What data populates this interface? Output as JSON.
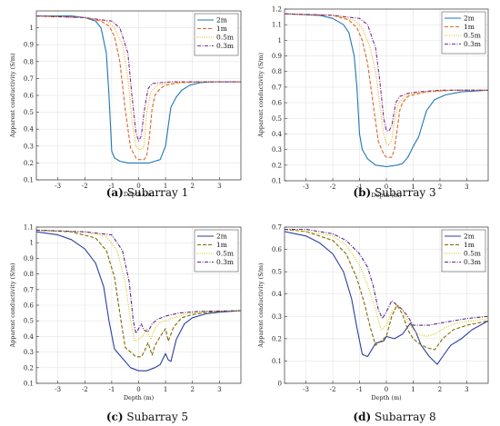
{
  "figure": {
    "colors": {
      "2m": "#1f77b4",
      "1m": "#e0642a",
      "0.5m": "#e7b10a",
      "0.3m": "#7e2f8e"
    }
  },
  "chart_data": [
    {
      "type": "line",
      "id": "a",
      "caption_label": "(a)",
      "caption_text": "Subarray 1",
      "xlabel": "Depth (m)",
      "ylabel": "Apparent conductivity (S/m)",
      "xlim": [
        -3.8,
        3.8
      ],
      "ylim": [
        0.1,
        1.1
      ],
      "xticks": [
        "-3",
        "-2",
        "-1",
        "0",
        "1",
        "2",
        "3"
      ],
      "yticks": [
        "0.1",
        "0.2",
        "0.3",
        "0.4",
        "0.5",
        "0.6",
        "0.7",
        "0.8",
        "0.9",
        "1"
      ],
      "ytick_values": [
        0.1,
        0.2,
        0.3,
        0.4,
        0.5,
        0.6,
        0.7,
        0.8,
        0.9,
        1.0
      ],
      "legend": "top-right",
      "series": [
        {
          "name": "2m",
          "color": "#1f77b4",
          "dash": "solid",
          "x": [
            -3.8,
            -2.5,
            -2.0,
            -1.6,
            -1.4,
            -1.2,
            -1.1,
            -1.0,
            -0.9,
            -0.7,
            -0.4,
            0.0,
            0.4,
            0.6,
            0.8,
            1.0,
            1.1,
            1.2,
            1.4,
            1.6,
            1.9,
            2.3,
            2.8,
            3.8
          ],
          "y": [
            1.07,
            1.07,
            1.06,
            1.04,
            1.0,
            0.85,
            0.6,
            0.27,
            0.23,
            0.21,
            0.2,
            0.2,
            0.2,
            0.21,
            0.22,
            0.3,
            0.42,
            0.53,
            0.59,
            0.63,
            0.66,
            0.675,
            0.68,
            0.68
          ]
        },
        {
          "name": "1m",
          "color": "#e0642a",
          "dash": "dashed",
          "x": [
            -3.8,
            -2.0,
            -1.4,
            -1.1,
            -0.9,
            -0.7,
            -0.5,
            -0.3,
            -0.1,
            0.0,
            0.2,
            0.3,
            0.4,
            0.5,
            0.6,
            0.8,
            1.0,
            1.5,
            2.5,
            3.8
          ],
          "y": [
            1.07,
            1.06,
            1.04,
            1.01,
            0.95,
            0.8,
            0.52,
            0.29,
            0.23,
            0.22,
            0.22,
            0.24,
            0.35,
            0.52,
            0.6,
            0.64,
            0.66,
            0.675,
            0.68,
            0.68
          ]
        },
        {
          "name": "0.5m",
          "color": "#e7b10a",
          "dash": "dotted",
          "x": [
            -3.8,
            -2.0,
            -1.2,
            -0.9,
            -0.6,
            -0.4,
            -0.25,
            -0.1,
            0.0,
            0.1,
            0.2,
            0.3,
            0.45,
            0.7,
            1.0,
            1.5,
            2.5,
            3.8
          ],
          "y": [
            1.07,
            1.06,
            1.04,
            1.0,
            0.9,
            0.7,
            0.45,
            0.3,
            0.28,
            0.28,
            0.3,
            0.5,
            0.62,
            0.66,
            0.67,
            0.675,
            0.68,
            0.68
          ]
        },
        {
          "name": "0.3m",
          "color": "#7e2f8e",
          "dash": "dashdot",
          "x": [
            -3.8,
            -2.0,
            -1.0,
            -0.7,
            -0.4,
            -0.25,
            -0.1,
            0.0,
            0.1,
            0.2,
            0.35,
            0.5,
            0.8,
            1.2,
            2.0,
            3.8
          ],
          "y": [
            1.07,
            1.06,
            1.04,
            1.0,
            0.85,
            0.6,
            0.38,
            0.33,
            0.36,
            0.5,
            0.64,
            0.67,
            0.675,
            0.68,
            0.68,
            0.68
          ]
        }
      ]
    },
    {
      "type": "line",
      "id": "b",
      "caption_label": "(b)",
      "caption_text": "Subarray 3",
      "xlabel": "Depth (m)",
      "ylabel": "Apparent conductivity (S/m)",
      "xlim": [
        -3.8,
        3.8
      ],
      "ylim": [
        0.1,
        1.2
      ],
      "xticks": [
        "-3",
        "-2",
        "-1",
        "0",
        "1",
        "2",
        "3"
      ],
      "yticks": [
        "0.1",
        "0.2",
        "0.3",
        "0.4",
        "0.5",
        "0.6",
        "0.7",
        "0.8",
        "0.9",
        "1",
        "1.1",
        "1.2"
      ],
      "ytick_values": [
        0.1,
        0.2,
        0.3,
        0.4,
        0.5,
        0.6,
        0.7,
        0.8,
        0.9,
        1.0,
        1.1,
        1.2
      ],
      "legend": "top-right",
      "series": [
        {
          "name": "2m",
          "color": "#1f77b4",
          "dash": "solid",
          "x": [
            -3.8,
            -2.5,
            -2.0,
            -1.6,
            -1.4,
            -1.2,
            -1.1,
            -1.0,
            -0.9,
            -0.7,
            -0.4,
            0.0,
            0.4,
            0.6,
            0.8,
            1.0,
            1.2,
            1.5,
            1.8,
            2.2,
            2.8,
            3.8
          ],
          "y": [
            1.17,
            1.16,
            1.14,
            1.1,
            1.05,
            0.9,
            0.7,
            0.4,
            0.3,
            0.24,
            0.2,
            0.19,
            0.2,
            0.21,
            0.25,
            0.32,
            0.38,
            0.55,
            0.62,
            0.65,
            0.67,
            0.68
          ]
        },
        {
          "name": "1m",
          "color": "#e0642a",
          "dash": "dashed",
          "x": [
            -3.8,
            -2.0,
            -1.4,
            -1.1,
            -0.9,
            -0.7,
            -0.5,
            -0.3,
            -0.1,
            0.0,
            0.2,
            0.3,
            0.4,
            0.5,
            0.6,
            0.8,
            1.0,
            1.5,
            2.5,
            3.8
          ],
          "y": [
            1.17,
            1.16,
            1.13,
            1.08,
            1.0,
            0.85,
            0.6,
            0.35,
            0.27,
            0.25,
            0.25,
            0.3,
            0.42,
            0.55,
            0.6,
            0.64,
            0.65,
            0.67,
            0.68,
            0.68
          ]
        },
        {
          "name": "0.5m",
          "color": "#e7b10a",
          "dash": "dotted",
          "x": [
            -3.8,
            -2.0,
            -1.2,
            -0.9,
            -0.6,
            -0.4,
            -0.25,
            -0.1,
            0.0,
            0.1,
            0.2,
            0.3,
            0.45,
            0.7,
            1.0,
            1.5,
            2.5,
            3.8
          ],
          "y": [
            1.17,
            1.16,
            1.13,
            1.08,
            0.95,
            0.8,
            0.6,
            0.4,
            0.34,
            0.33,
            0.36,
            0.48,
            0.6,
            0.64,
            0.66,
            0.67,
            0.68,
            0.68
          ]
        },
        {
          "name": "0.3m",
          "color": "#7e2f8e",
          "dash": "dashdot",
          "x": [
            -3.8,
            -2.0,
            -1.0,
            -0.7,
            -0.4,
            -0.25,
            -0.1,
            0.0,
            0.1,
            0.2,
            0.35,
            0.5,
            0.8,
            1.2,
            2.0,
            3.8
          ],
          "y": [
            1.17,
            1.16,
            1.14,
            1.1,
            0.95,
            0.75,
            0.5,
            0.42,
            0.42,
            0.45,
            0.6,
            0.64,
            0.66,
            0.67,
            0.68,
            0.68
          ]
        }
      ]
    },
    {
      "type": "line",
      "id": "c",
      "caption_label": "(c)",
      "caption_text": "Subarray 5",
      "xlabel": "Depth (m)",
      "ylabel": "Apparent conductivity (S/m)",
      "xlim": [
        -3.8,
        3.8
      ],
      "ylim": [
        0.1,
        1.1
      ],
      "xticks": [
        "-3",
        "-2",
        "-1",
        "0",
        "1",
        "2",
        "3"
      ],
      "yticks": [
        "0.1",
        "0.2",
        "0.3",
        "0.4",
        "0.5",
        "0.6",
        "0.7",
        "0.8",
        "0.9",
        "1",
        "1.1"
      ],
      "ytick_values": [
        0.1,
        0.2,
        0.3,
        0.4,
        0.5,
        0.6,
        0.7,
        0.8,
        0.9,
        1.0,
        1.1
      ],
      "legend": "top-right",
      "series": [
        {
          "name": "2m",
          "color": "#2b3fa0",
          "dash": "solid",
          "x": [
            -3.8,
            -3.0,
            -2.5,
            -2.0,
            -1.6,
            -1.3,
            -1.1,
            -0.9,
            -0.6,
            -0.3,
            0.0,
            0.3,
            0.6,
            0.8,
            1.0,
            1.1,
            1.2,
            1.4,
            1.7,
            2.0,
            2.5,
            3.0,
            3.8
          ],
          "y": [
            1.07,
            1.05,
            1.02,
            0.96,
            0.87,
            0.72,
            0.5,
            0.32,
            0.26,
            0.2,
            0.18,
            0.18,
            0.2,
            0.22,
            0.29,
            0.25,
            0.24,
            0.38,
            0.48,
            0.52,
            0.545,
            0.555,
            0.565
          ]
        },
        {
          "name": "1m",
          "color": "#7f6a00",
          "dash": "dashed",
          "x": [
            -3.8,
            -2.5,
            -1.6,
            -1.2,
            -0.9,
            -0.7,
            -0.5,
            -0.3,
            -0.1,
            0.1,
            0.2,
            0.35,
            0.5,
            0.6,
            0.8,
            1.0,
            1.1,
            1.3,
            1.6,
            2.0,
            2.6,
            3.8
          ],
          "y": [
            1.08,
            1.07,
            1.03,
            0.95,
            0.78,
            0.55,
            0.33,
            0.3,
            0.27,
            0.27,
            0.3,
            0.36,
            0.28,
            0.34,
            0.4,
            0.45,
            0.37,
            0.46,
            0.52,
            0.54,
            0.555,
            0.565
          ]
        },
        {
          "name": "0.5m",
          "color": "#d9c200",
          "dash": "dotted",
          "x": [
            -3.8,
            -2.0,
            -1.2,
            -0.8,
            -0.5,
            -0.3,
            -0.15,
            0.0,
            0.15,
            0.3,
            0.45,
            0.6,
            0.8,
            1.0,
            1.3,
            1.8,
            2.5,
            3.8
          ],
          "y": [
            1.08,
            1.07,
            1.04,
            0.95,
            0.75,
            0.5,
            0.37,
            0.38,
            0.4,
            0.45,
            0.38,
            0.45,
            0.49,
            0.5,
            0.52,
            0.545,
            0.56,
            0.565
          ]
        },
        {
          "name": "0.3m",
          "color": "#5b2a86",
          "dash": "dashdot",
          "x": [
            -3.8,
            -2.0,
            -1.0,
            -0.6,
            -0.35,
            -0.2,
            -0.1,
            0.0,
            0.1,
            0.2,
            0.35,
            0.5,
            0.7,
            1.0,
            1.5,
            2.2,
            3.8
          ],
          "y": [
            1.08,
            1.07,
            1.05,
            0.95,
            0.75,
            0.5,
            0.42,
            0.45,
            0.48,
            0.44,
            0.43,
            0.48,
            0.51,
            0.53,
            0.55,
            0.56,
            0.565
          ]
        }
      ]
    },
    {
      "type": "line",
      "id": "d",
      "caption_label": "(d)",
      "caption_text": "Subarray 8",
      "xlabel": "Depth (m)",
      "ylabel": "Apparent conductivity (S/m)",
      "xlim": [
        -3.8,
        3.8
      ],
      "ylim": [
        0.0,
        0.7
      ],
      "xticks": [
        "-3",
        "-2",
        "-1",
        "0",
        "1",
        "2",
        "3"
      ],
      "yticks": [
        "0",
        "0.1",
        "0.2",
        "0.3",
        "0.4",
        "0.5",
        "0.6",
        "0.7"
      ],
      "ytick_values": [
        0.0,
        0.1,
        0.2,
        0.3,
        0.4,
        0.5,
        0.6,
        0.7
      ],
      "legend": "top-right",
      "series": [
        {
          "name": "2m",
          "color": "#2b3fa0",
          "dash": "solid",
          "x": [
            -3.8,
            -3.0,
            -2.5,
            -2.0,
            -1.6,
            -1.3,
            -1.1,
            -0.9,
            -0.7,
            -0.4,
            -0.1,
            0.0,
            0.3,
            0.6,
            0.9,
            1.1,
            1.3,
            1.6,
            1.9,
            2.1,
            2.4,
            2.8,
            3.2,
            3.8
          ],
          "y": [
            0.68,
            0.66,
            0.63,
            0.58,
            0.5,
            0.38,
            0.25,
            0.13,
            0.12,
            0.18,
            0.19,
            0.21,
            0.2,
            0.22,
            0.27,
            0.23,
            0.17,
            0.12,
            0.085,
            0.12,
            0.17,
            0.2,
            0.24,
            0.28
          ]
        },
        {
          "name": "1m",
          "color": "#7f6a00",
          "dash": "dashed",
          "x": [
            -3.8,
            -3.0,
            -2.0,
            -1.5,
            -1.1,
            -0.8,
            -0.6,
            -0.4,
            -0.2,
            0.0,
            0.2,
            0.4,
            0.6,
            0.8,
            1.0,
            1.2,
            1.5,
            1.8,
            2.1,
            2.5,
            3.0,
            3.8
          ],
          "y": [
            0.69,
            0.68,
            0.64,
            0.58,
            0.47,
            0.35,
            0.25,
            0.17,
            0.19,
            0.21,
            0.3,
            0.35,
            0.31,
            0.24,
            0.2,
            0.18,
            0.16,
            0.15,
            0.2,
            0.24,
            0.26,
            0.28
          ]
        },
        {
          "name": "0.5m",
          "color": "#d9c200",
          "dash": "dotted",
          "x": [
            -3.8,
            -3.0,
            -2.0,
            -1.5,
            -1.0,
            -0.7,
            -0.4,
            -0.2,
            0.0,
            0.2,
            0.4,
            0.6,
            0.8,
            1.0,
            1.2,
            1.5,
            1.8,
            2.2,
            2.6,
            3.2,
            3.8
          ],
          "y": [
            0.69,
            0.68,
            0.66,
            0.62,
            0.53,
            0.44,
            0.33,
            0.24,
            0.26,
            0.32,
            0.35,
            0.33,
            0.28,
            0.24,
            0.22,
            0.21,
            0.22,
            0.25,
            0.27,
            0.28,
            0.29
          ]
        },
        {
          "name": "0.3m",
          "color": "#5b2a86",
          "dash": "dashdot",
          "x": [
            -3.8,
            -3.0,
            -2.0,
            -1.5,
            -1.0,
            -0.7,
            -0.5,
            -0.3,
            -0.15,
            0.0,
            0.2,
            0.4,
            0.6,
            0.8,
            1.0,
            1.3,
            1.6,
            2.0,
            2.5,
            3.0,
            3.8
          ],
          "y": [
            0.69,
            0.69,
            0.67,
            0.64,
            0.58,
            0.52,
            0.44,
            0.33,
            0.29,
            0.32,
            0.37,
            0.35,
            0.33,
            0.3,
            0.26,
            0.26,
            0.26,
            0.27,
            0.28,
            0.29,
            0.3
          ]
        }
      ]
    }
  ]
}
